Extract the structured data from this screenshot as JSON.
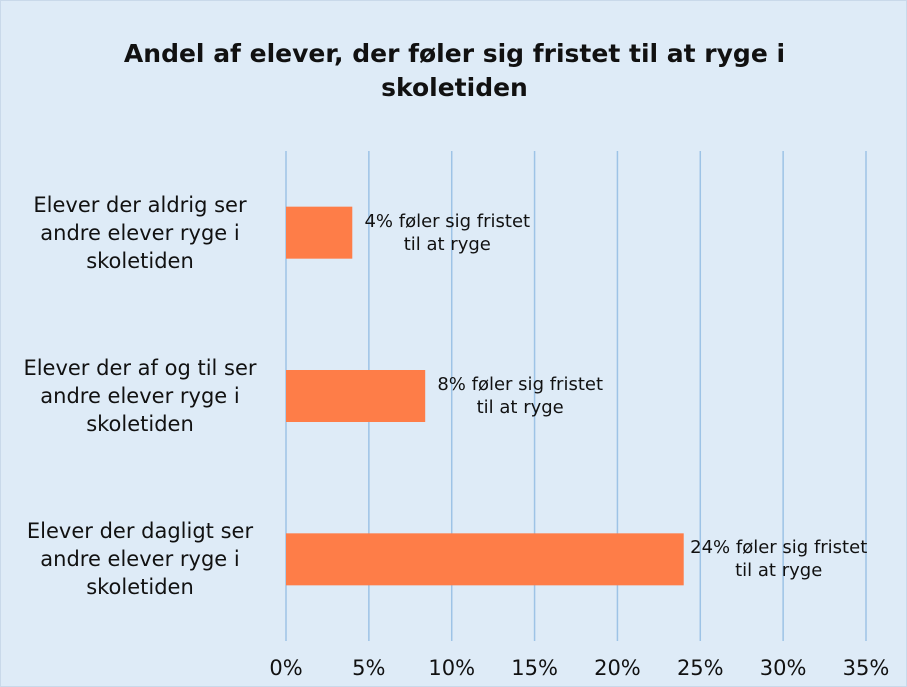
{
  "chart_data": {
    "type": "bar",
    "orientation": "horizontal",
    "title": "Andel af elever, der føler sig fristet til at ryge i skoletiden",
    "categories": [
      "Elever der aldrig ser andre elever ryge i skoletiden",
      "Elever der af og til ser andre elever ryge i skoletiden",
      "Elever der dagligt ser andre elever ryge i skoletiden"
    ],
    "values": [
      4,
      8.4,
      24
    ],
    "value_labels": [
      "4% føler sig fristet til at ryge",
      "8% føler sig fristet til at ryge",
      "24% føler sig fristet til at ryge"
    ],
    "color": "#fe7d48",
    "xlim": [
      0,
      35
    ],
    "xticks": [
      {
        "value": 0,
        "label": "0%"
      },
      {
        "value": 5,
        "label": "5%"
      },
      {
        "value": 10,
        "label": "10%"
      },
      {
        "value": 15,
        "label": "15%"
      },
      {
        "value": 20,
        "label": "20%"
      },
      {
        "value": 25,
        "label": "25%"
      },
      {
        "value": 30,
        "label": "30%"
      },
      {
        "value": 35,
        "label": "35%"
      }
    ],
    "grid": true
  }
}
